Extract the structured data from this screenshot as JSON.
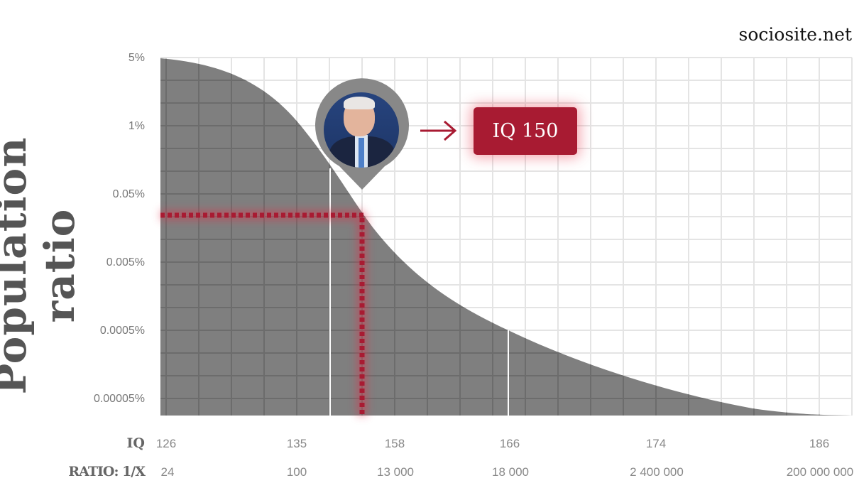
{
  "chart_data": {
    "type": "area",
    "title": "",
    "ylabel": "Population ratio",
    "y_scale": "log",
    "y_ticks": [
      "5%",
      "1%",
      "0.05%",
      "0.005%",
      "0.0005%",
      "0.00005%"
    ],
    "x_row_label": "IQ",
    "x_ticks": [
      "126",
      "135",
      "158",
      "166",
      "174",
      "186"
    ],
    "ratio_row_label": "RATIO: 1/X",
    "ratio_ticks": [
      "24",
      "100",
      "13 000",
      "18 000",
      "2 400 000",
      "200 000 000"
    ],
    "highlight": {
      "label": "IQ 150",
      "iq": 150
    },
    "grid": true,
    "fill_color": "#7f7f7f",
    "accent_color": "#a81b32"
  },
  "site": "sociosite.net"
}
